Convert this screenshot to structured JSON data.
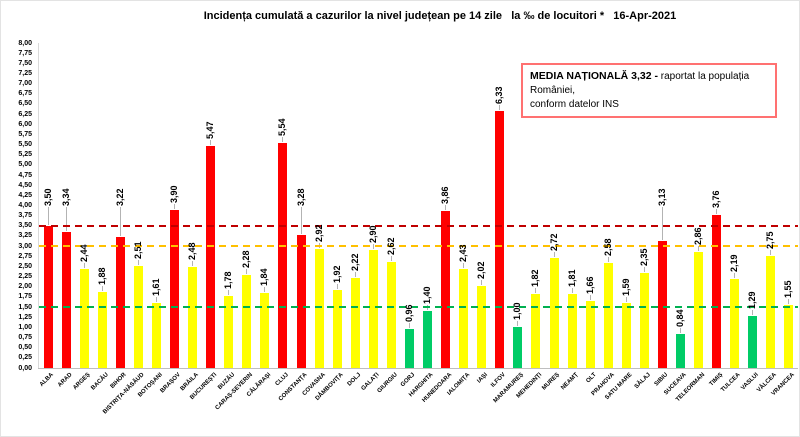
{
  "title": "Incidența cumulată a cazurilor la nivel județean pe 14 zile   la ‰ de locuitori *   16-Apr-2021",
  "legend_box": {
    "title_bold": "MEDIA NAȚIONALĂ 3,32 -",
    "line1": "raportat la populația României,",
    "line2": "conform datelor INS"
  },
  "chart_data": {
    "type": "bar",
    "title": "Incidența cumulată a cazurilor la nivel județean pe 14 zile la ‰ de locuitori * 16-Apr-2021",
    "date": "16-Apr-2021",
    "unit": "‰",
    "ylim": [
      0,
      8
    ],
    "ytick_step": 0.25,
    "grid": false,
    "legend_position": "top-right",
    "palette": {
      "red": "#FF0000",
      "yellow": "#FFFF00",
      "green": "#00CC66"
    },
    "thresholds": [
      {
        "name": "red-threshold",
        "value": 3.5,
        "color": "#C00000"
      },
      {
        "name": "orange-threshold",
        "value": 3.0,
        "color": "#FFC000"
      },
      {
        "name": "green-threshold",
        "value": 1.5,
        "color": "#00B050"
      }
    ],
    "national_average": 3.32,
    "counties": [
      {
        "name": "ALBA",
        "value": 3.5,
        "label": "3,50",
        "level": "red"
      },
      {
        "name": "ARAD",
        "value": 3.34,
        "label": "3,34",
        "level": "red"
      },
      {
        "name": "ARGEȘ",
        "value": 2.44,
        "label": "2,44",
        "level": "yellow"
      },
      {
        "name": "BACĂU",
        "value": 1.88,
        "label": "1,88",
        "level": "yellow"
      },
      {
        "name": "BIHOR",
        "value": 3.22,
        "label": "3,22",
        "level": "red"
      },
      {
        "name": "BISTRIȚA-NĂSĂUD",
        "value": 2.51,
        "label": "2,51",
        "level": "yellow"
      },
      {
        "name": "BOTOȘANI",
        "value": 1.61,
        "label": "1,61",
        "level": "yellow"
      },
      {
        "name": "BRAȘOV",
        "value": 3.9,
        "label": "3,90",
        "level": "red"
      },
      {
        "name": "BRĂILA",
        "value": 2.48,
        "label": "2,48",
        "level": "yellow"
      },
      {
        "name": "BUCUREȘTI",
        "value": 5.47,
        "label": "5,47",
        "level": "red"
      },
      {
        "name": "BUZĂU",
        "value": 1.78,
        "label": "1,78",
        "level": "yellow"
      },
      {
        "name": "CARAȘ-SEVERIN",
        "value": 2.28,
        "label": "2,28",
        "level": "yellow"
      },
      {
        "name": "CĂLĂRAȘI",
        "value": 1.84,
        "label": "1,84",
        "level": "yellow"
      },
      {
        "name": "CLUJ",
        "value": 5.54,
        "label": "5,54",
        "level": "red"
      },
      {
        "name": "CONSTANȚA",
        "value": 3.28,
        "label": "3,28",
        "level": "red"
      },
      {
        "name": "COVASNA",
        "value": 2.92,
        "label": "2,92",
        "level": "yellow"
      },
      {
        "name": "DÂMBOVIȚA",
        "value": 1.92,
        "label": "1,92",
        "level": "yellow"
      },
      {
        "name": "DOLJ",
        "value": 2.22,
        "label": "2,22",
        "level": "yellow"
      },
      {
        "name": "GALAȚI",
        "value": 2.9,
        "label": "2,90",
        "level": "yellow"
      },
      {
        "name": "GIURGIU",
        "value": 2.62,
        "label": "2,62",
        "level": "yellow"
      },
      {
        "name": "GORJ",
        "value": 0.96,
        "label": "0,96",
        "level": "green"
      },
      {
        "name": "HARGHITA",
        "value": 1.4,
        "label": "1,40",
        "level": "green"
      },
      {
        "name": "HUNEDOARA",
        "value": 3.86,
        "label": "3,86",
        "level": "red"
      },
      {
        "name": "IALOMIȚA",
        "value": 2.43,
        "label": "2,43",
        "level": "yellow"
      },
      {
        "name": "IAȘI",
        "value": 2.02,
        "label": "2,02",
        "level": "yellow"
      },
      {
        "name": "ILFOV",
        "value": 6.33,
        "label": "6,33",
        "level": "red"
      },
      {
        "name": "MARAMUREȘ",
        "value": 1.0,
        "label": "1,00",
        "level": "green"
      },
      {
        "name": "MEHEDINȚI",
        "value": 1.82,
        "label": "1,82",
        "level": "yellow"
      },
      {
        "name": "MUREȘ",
        "value": 2.72,
        "label": "2,72",
        "level": "yellow"
      },
      {
        "name": "NEAMȚ",
        "value": 1.81,
        "label": "1,81",
        "level": "yellow"
      },
      {
        "name": "OLT",
        "value": 1.66,
        "label": "1,66",
        "level": "yellow"
      },
      {
        "name": "PRAHOVA",
        "value": 2.58,
        "label": "2,58",
        "level": "yellow"
      },
      {
        "name": "SATU MARE",
        "value": 1.59,
        "label": "1,59",
        "level": "yellow"
      },
      {
        "name": "SĂLAJ",
        "value": 2.35,
        "label": "2,35",
        "level": "yellow"
      },
      {
        "name": "SIBIU",
        "value": 3.13,
        "label": "3,13",
        "level": "red"
      },
      {
        "name": "SUCEAVA",
        "value": 0.84,
        "label": "0,84",
        "level": "green"
      },
      {
        "name": "TELEORMAN",
        "value": 2.86,
        "label": "2,86",
        "level": "yellow"
      },
      {
        "name": "TIMIȘ",
        "value": 3.76,
        "label": "3,76",
        "level": "red"
      },
      {
        "name": "TULCEA",
        "value": 2.19,
        "label": "2,19",
        "level": "yellow"
      },
      {
        "name": "VASLUI",
        "value": 1.29,
        "label": "1,29",
        "level": "green"
      },
      {
        "name": "VÂLCEA",
        "value": 2.75,
        "label": "2,75",
        "level": "yellow"
      },
      {
        "name": "VRANCEA",
        "value": 1.55,
        "label": "1,55",
        "level": "yellow"
      }
    ]
  }
}
